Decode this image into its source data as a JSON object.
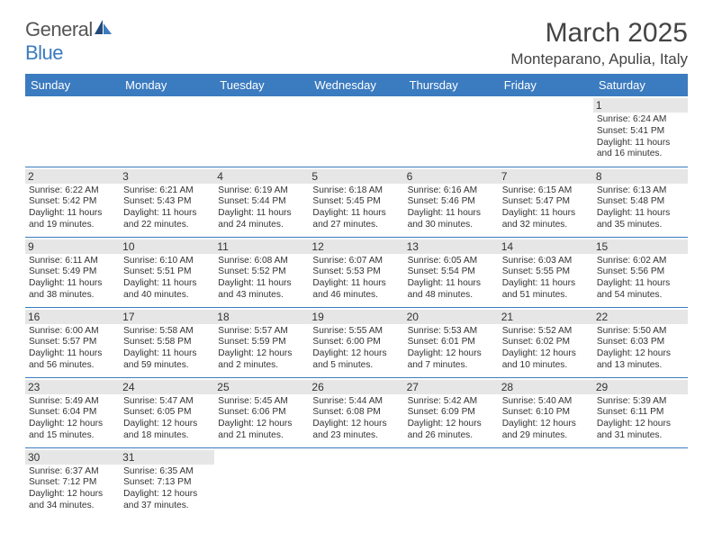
{
  "logo": {
    "text_general": "General",
    "text_blue": "Blue"
  },
  "title": "March 2025",
  "location": "Monteparano, Apulia, Italy",
  "colors": {
    "header_bg": "#3b7bbf",
    "header_text": "#ffffff",
    "daynum_bg": "#e6e6e6",
    "border": "#3b7bbf",
    "text": "#333333"
  },
  "day_headers": [
    "Sunday",
    "Monday",
    "Tuesday",
    "Wednesday",
    "Thursday",
    "Friday",
    "Saturday"
  ],
  "weeks": [
    [
      {
        "n": "",
        "sunrise": "",
        "sunset": "",
        "daylight": ""
      },
      {
        "n": "",
        "sunrise": "",
        "sunset": "",
        "daylight": ""
      },
      {
        "n": "",
        "sunrise": "",
        "sunset": "",
        "daylight": ""
      },
      {
        "n": "",
        "sunrise": "",
        "sunset": "",
        "daylight": ""
      },
      {
        "n": "",
        "sunrise": "",
        "sunset": "",
        "daylight": ""
      },
      {
        "n": "",
        "sunrise": "",
        "sunset": "",
        "daylight": ""
      },
      {
        "n": "1",
        "sunrise": "Sunrise: 6:24 AM",
        "sunset": "Sunset: 5:41 PM",
        "daylight": "Daylight: 11 hours and 16 minutes."
      }
    ],
    [
      {
        "n": "2",
        "sunrise": "Sunrise: 6:22 AM",
        "sunset": "Sunset: 5:42 PM",
        "daylight": "Daylight: 11 hours and 19 minutes."
      },
      {
        "n": "3",
        "sunrise": "Sunrise: 6:21 AM",
        "sunset": "Sunset: 5:43 PM",
        "daylight": "Daylight: 11 hours and 22 minutes."
      },
      {
        "n": "4",
        "sunrise": "Sunrise: 6:19 AM",
        "sunset": "Sunset: 5:44 PM",
        "daylight": "Daylight: 11 hours and 24 minutes."
      },
      {
        "n": "5",
        "sunrise": "Sunrise: 6:18 AM",
        "sunset": "Sunset: 5:45 PM",
        "daylight": "Daylight: 11 hours and 27 minutes."
      },
      {
        "n": "6",
        "sunrise": "Sunrise: 6:16 AM",
        "sunset": "Sunset: 5:46 PM",
        "daylight": "Daylight: 11 hours and 30 minutes."
      },
      {
        "n": "7",
        "sunrise": "Sunrise: 6:15 AM",
        "sunset": "Sunset: 5:47 PM",
        "daylight": "Daylight: 11 hours and 32 minutes."
      },
      {
        "n": "8",
        "sunrise": "Sunrise: 6:13 AM",
        "sunset": "Sunset: 5:48 PM",
        "daylight": "Daylight: 11 hours and 35 minutes."
      }
    ],
    [
      {
        "n": "9",
        "sunrise": "Sunrise: 6:11 AM",
        "sunset": "Sunset: 5:49 PM",
        "daylight": "Daylight: 11 hours and 38 minutes."
      },
      {
        "n": "10",
        "sunrise": "Sunrise: 6:10 AM",
        "sunset": "Sunset: 5:51 PM",
        "daylight": "Daylight: 11 hours and 40 minutes."
      },
      {
        "n": "11",
        "sunrise": "Sunrise: 6:08 AM",
        "sunset": "Sunset: 5:52 PM",
        "daylight": "Daylight: 11 hours and 43 minutes."
      },
      {
        "n": "12",
        "sunrise": "Sunrise: 6:07 AM",
        "sunset": "Sunset: 5:53 PM",
        "daylight": "Daylight: 11 hours and 46 minutes."
      },
      {
        "n": "13",
        "sunrise": "Sunrise: 6:05 AM",
        "sunset": "Sunset: 5:54 PM",
        "daylight": "Daylight: 11 hours and 48 minutes."
      },
      {
        "n": "14",
        "sunrise": "Sunrise: 6:03 AM",
        "sunset": "Sunset: 5:55 PM",
        "daylight": "Daylight: 11 hours and 51 minutes."
      },
      {
        "n": "15",
        "sunrise": "Sunrise: 6:02 AM",
        "sunset": "Sunset: 5:56 PM",
        "daylight": "Daylight: 11 hours and 54 minutes."
      }
    ],
    [
      {
        "n": "16",
        "sunrise": "Sunrise: 6:00 AM",
        "sunset": "Sunset: 5:57 PM",
        "daylight": "Daylight: 11 hours and 56 minutes."
      },
      {
        "n": "17",
        "sunrise": "Sunrise: 5:58 AM",
        "sunset": "Sunset: 5:58 PM",
        "daylight": "Daylight: 11 hours and 59 minutes."
      },
      {
        "n": "18",
        "sunrise": "Sunrise: 5:57 AM",
        "sunset": "Sunset: 5:59 PM",
        "daylight": "Daylight: 12 hours and 2 minutes."
      },
      {
        "n": "19",
        "sunrise": "Sunrise: 5:55 AM",
        "sunset": "Sunset: 6:00 PM",
        "daylight": "Daylight: 12 hours and 5 minutes."
      },
      {
        "n": "20",
        "sunrise": "Sunrise: 5:53 AM",
        "sunset": "Sunset: 6:01 PM",
        "daylight": "Daylight: 12 hours and 7 minutes."
      },
      {
        "n": "21",
        "sunrise": "Sunrise: 5:52 AM",
        "sunset": "Sunset: 6:02 PM",
        "daylight": "Daylight: 12 hours and 10 minutes."
      },
      {
        "n": "22",
        "sunrise": "Sunrise: 5:50 AM",
        "sunset": "Sunset: 6:03 PM",
        "daylight": "Daylight: 12 hours and 13 minutes."
      }
    ],
    [
      {
        "n": "23",
        "sunrise": "Sunrise: 5:49 AM",
        "sunset": "Sunset: 6:04 PM",
        "daylight": "Daylight: 12 hours and 15 minutes."
      },
      {
        "n": "24",
        "sunrise": "Sunrise: 5:47 AM",
        "sunset": "Sunset: 6:05 PM",
        "daylight": "Daylight: 12 hours and 18 minutes."
      },
      {
        "n": "25",
        "sunrise": "Sunrise: 5:45 AM",
        "sunset": "Sunset: 6:06 PM",
        "daylight": "Daylight: 12 hours and 21 minutes."
      },
      {
        "n": "26",
        "sunrise": "Sunrise: 5:44 AM",
        "sunset": "Sunset: 6:08 PM",
        "daylight": "Daylight: 12 hours and 23 minutes."
      },
      {
        "n": "27",
        "sunrise": "Sunrise: 5:42 AM",
        "sunset": "Sunset: 6:09 PM",
        "daylight": "Daylight: 12 hours and 26 minutes."
      },
      {
        "n": "28",
        "sunrise": "Sunrise: 5:40 AM",
        "sunset": "Sunset: 6:10 PM",
        "daylight": "Daylight: 12 hours and 29 minutes."
      },
      {
        "n": "29",
        "sunrise": "Sunrise: 5:39 AM",
        "sunset": "Sunset: 6:11 PM",
        "daylight": "Daylight: 12 hours and 31 minutes."
      }
    ],
    [
      {
        "n": "30",
        "sunrise": "Sunrise: 6:37 AM",
        "sunset": "Sunset: 7:12 PM",
        "daylight": "Daylight: 12 hours and 34 minutes."
      },
      {
        "n": "31",
        "sunrise": "Sunrise: 6:35 AM",
        "sunset": "Sunset: 7:13 PM",
        "daylight": "Daylight: 12 hours and 37 minutes."
      },
      {
        "n": "",
        "sunrise": "",
        "sunset": "",
        "daylight": ""
      },
      {
        "n": "",
        "sunrise": "",
        "sunset": "",
        "daylight": ""
      },
      {
        "n": "",
        "sunrise": "",
        "sunset": "",
        "daylight": ""
      },
      {
        "n": "",
        "sunrise": "",
        "sunset": "",
        "daylight": ""
      },
      {
        "n": "",
        "sunrise": "",
        "sunset": "",
        "daylight": ""
      }
    ]
  ]
}
